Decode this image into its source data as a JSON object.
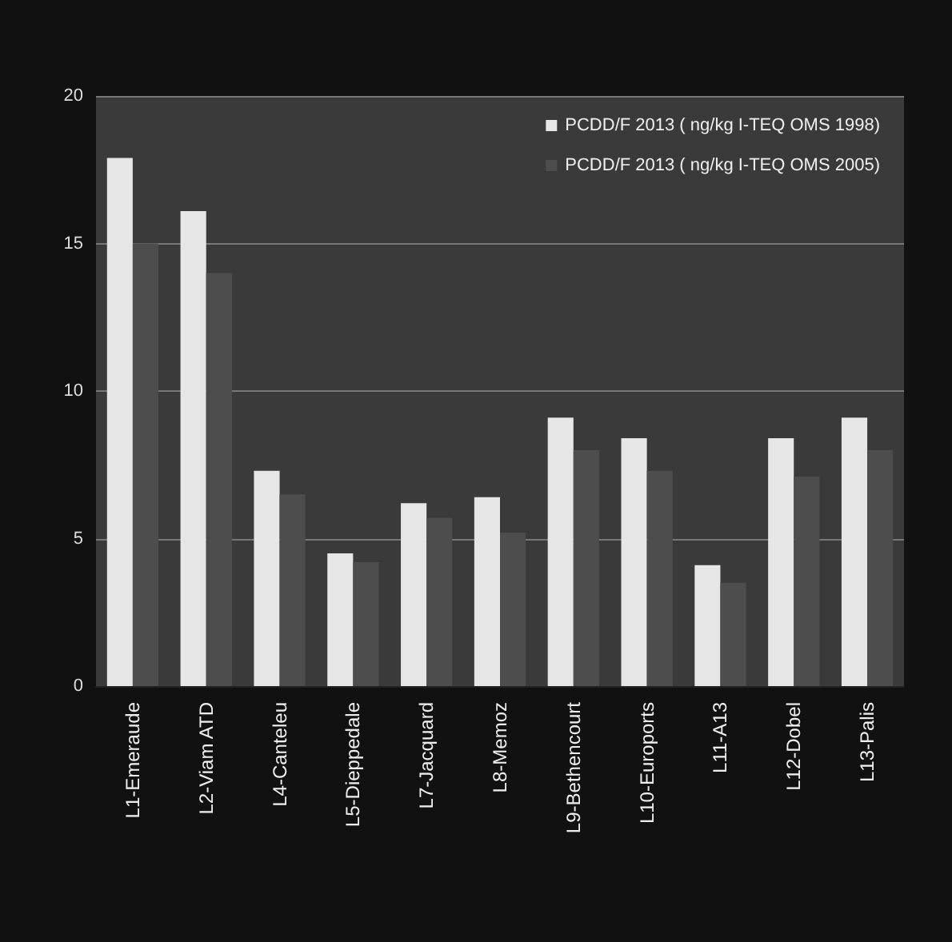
{
  "chart_data": {
    "type": "bar",
    "categories": [
      "L1-Emeraude",
      "L2-Viam ATD",
      "L4-Canteleu",
      "L5-Dieppedale",
      "L7-Jacquard",
      "L8-Memoz",
      "L9-Bethencourt",
      "L10-Euroports",
      "L11-A13",
      "L12-Dobel",
      "L13-Palis"
    ],
    "series": [
      {
        "name": "PCDD/F 2013 ( ng/kg I-TEQ OMS 1998)",
        "color": "#e6e6e6",
        "values": [
          17.9,
          16.1,
          7.3,
          4.5,
          6.2,
          6.4,
          9.1,
          8.4,
          4.1,
          8.4,
          9.1
        ]
      },
      {
        "name": "PCDD/F 2013 ( ng/kg I-TEQ OMS 2005)",
        "color": "#4d4d4d",
        "values": [
          15.0,
          14.0,
          6.5,
          4.2,
          5.7,
          5.2,
          8.0,
          7.3,
          3.5,
          7.1,
          8.0
        ]
      }
    ],
    "ylim": [
      0,
      20
    ],
    "yticks": [
      0,
      5,
      10,
      15,
      20
    ],
    "grid": "y",
    "legend": "top right"
  }
}
